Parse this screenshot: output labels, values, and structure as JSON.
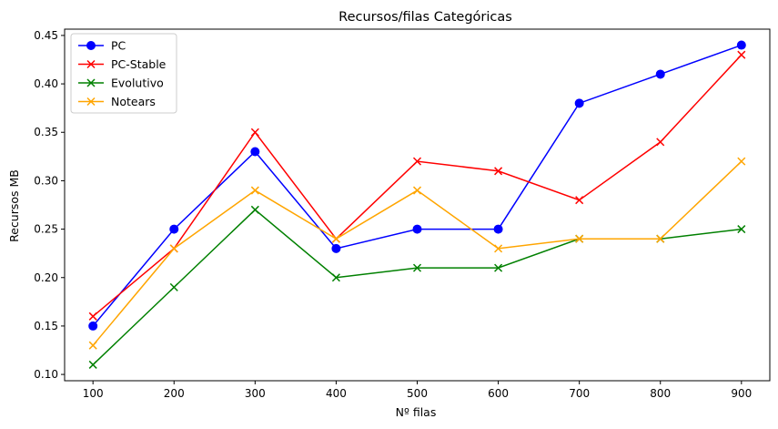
{
  "chart_data": {
    "type": "line",
    "title": "Recursos/filas Categóricas",
    "xlabel": "Nº filas",
    "ylabel": "Recursos MB",
    "x": [
      100,
      200,
      300,
      400,
      500,
      600,
      700,
      800,
      900
    ],
    "x_ticks": [
      "100",
      "200",
      "300",
      "400",
      "500",
      "600",
      "700",
      "800",
      "900"
    ],
    "xlim": [
      65,
      935
    ],
    "ylim": [
      0.0935,
      0.4565
    ],
    "y_ticks": [
      "0.10",
      "0.15",
      "0.20",
      "0.25",
      "0.30",
      "0.35",
      "0.40",
      "0.45"
    ],
    "grid": false,
    "legend_position": "top-left",
    "series": [
      {
        "name": "PC",
        "color": "#0000ff",
        "marker": "circle",
        "values": [
          0.15,
          0.25,
          0.33,
          0.23,
          0.25,
          0.25,
          0.38,
          0.41,
          0.44
        ]
      },
      {
        "name": "PC-Stable",
        "color": "#ff0000",
        "marker": "x",
        "values": [
          0.16,
          0.23,
          0.35,
          0.24,
          0.32,
          0.31,
          0.28,
          0.34,
          0.43
        ]
      },
      {
        "name": "Evolutivo",
        "color": "#008000",
        "marker": "x",
        "values": [
          0.11,
          0.19,
          0.27,
          0.2,
          0.21,
          0.21,
          0.24,
          0.24,
          0.25
        ]
      },
      {
        "name": "Notears",
        "color": "#ffa500",
        "marker": "x",
        "values": [
          0.13,
          0.23,
          0.29,
          0.24,
          0.29,
          0.23,
          0.24,
          0.24,
          0.32
        ]
      }
    ]
  }
}
